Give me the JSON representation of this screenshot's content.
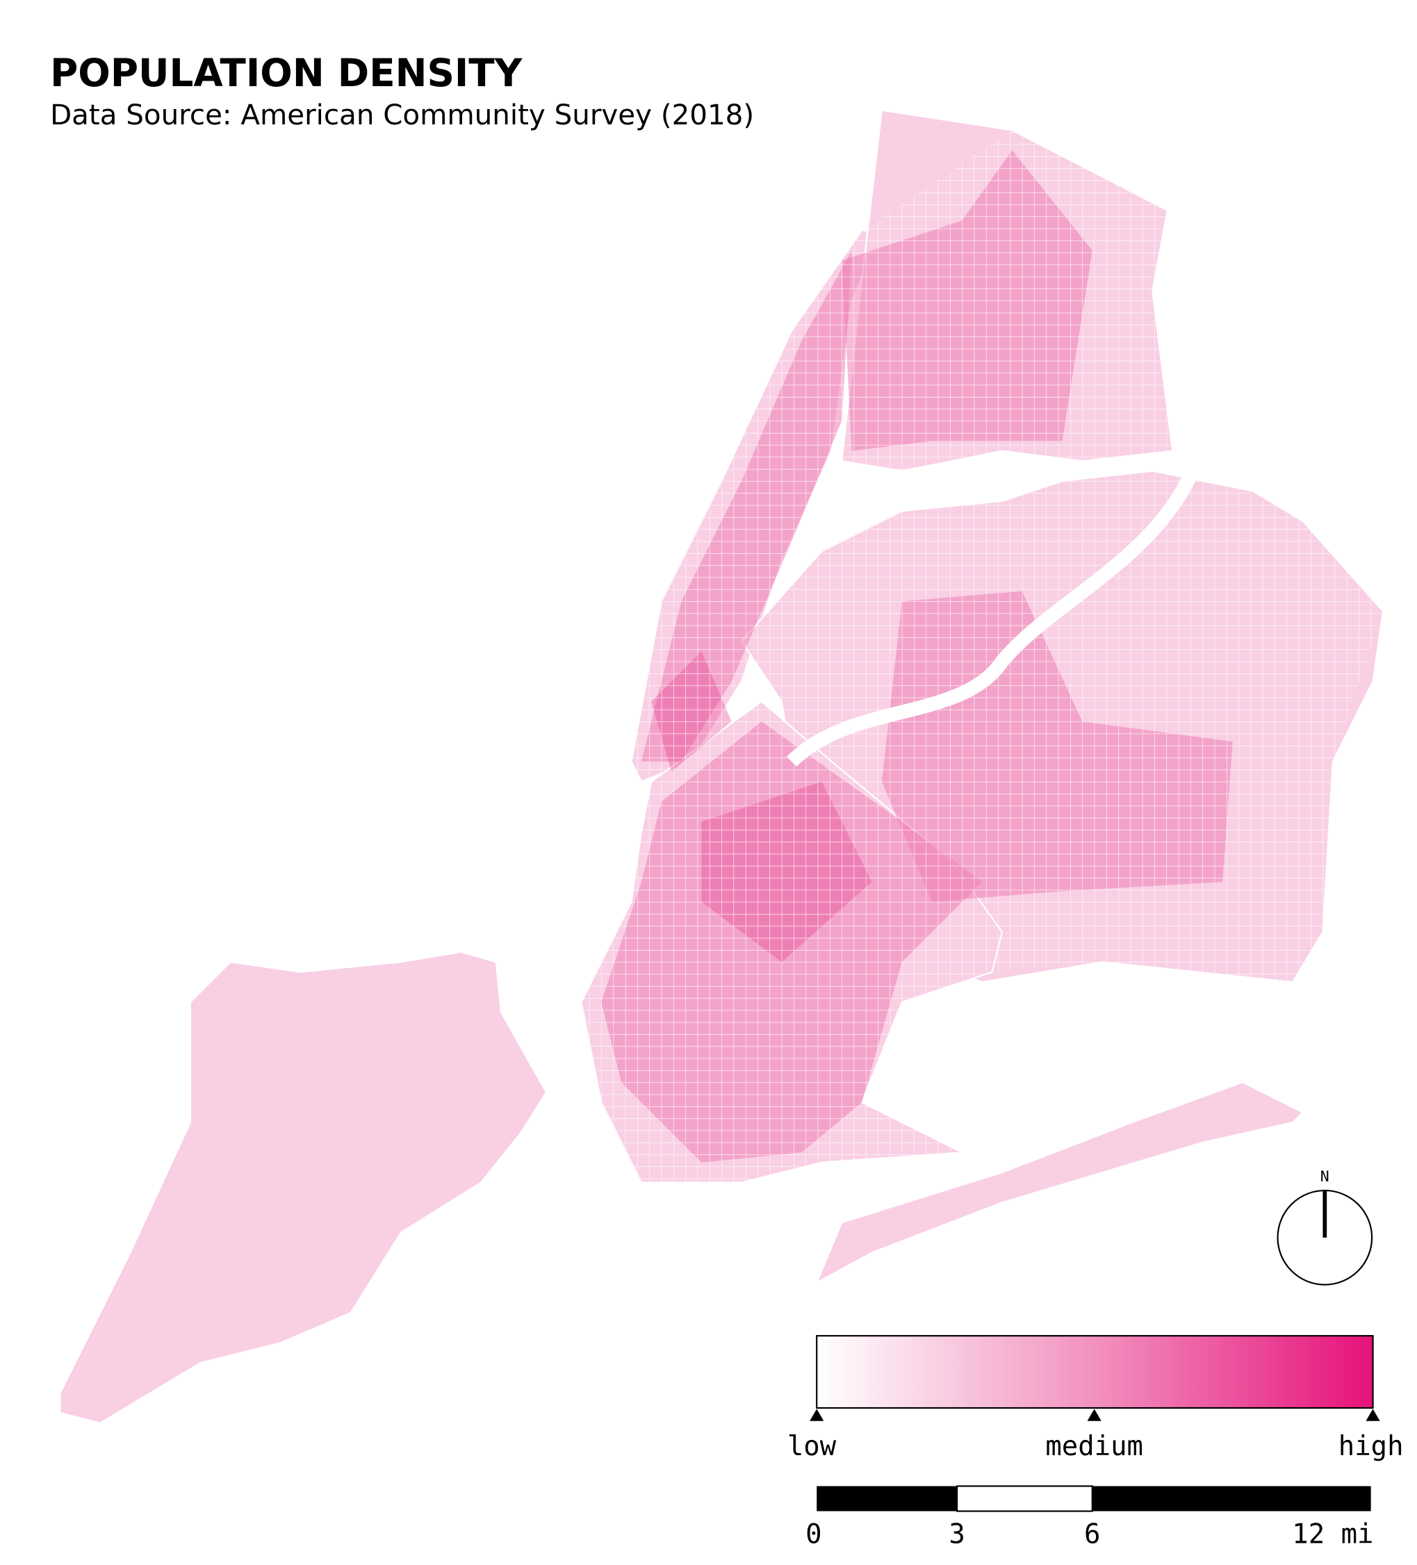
{
  "header": {
    "title": "POPULATION DENSITY",
    "subtitle": "Data Source: American Community Survey (2018)"
  },
  "legend": {
    "labels": [
      "low",
      "medium",
      "high"
    ]
  },
  "scale_bar": {
    "labels": [
      "0",
      "3",
      "6",
      "12 mi"
    ]
  },
  "north_arrow": {
    "label": "N"
  }
}
